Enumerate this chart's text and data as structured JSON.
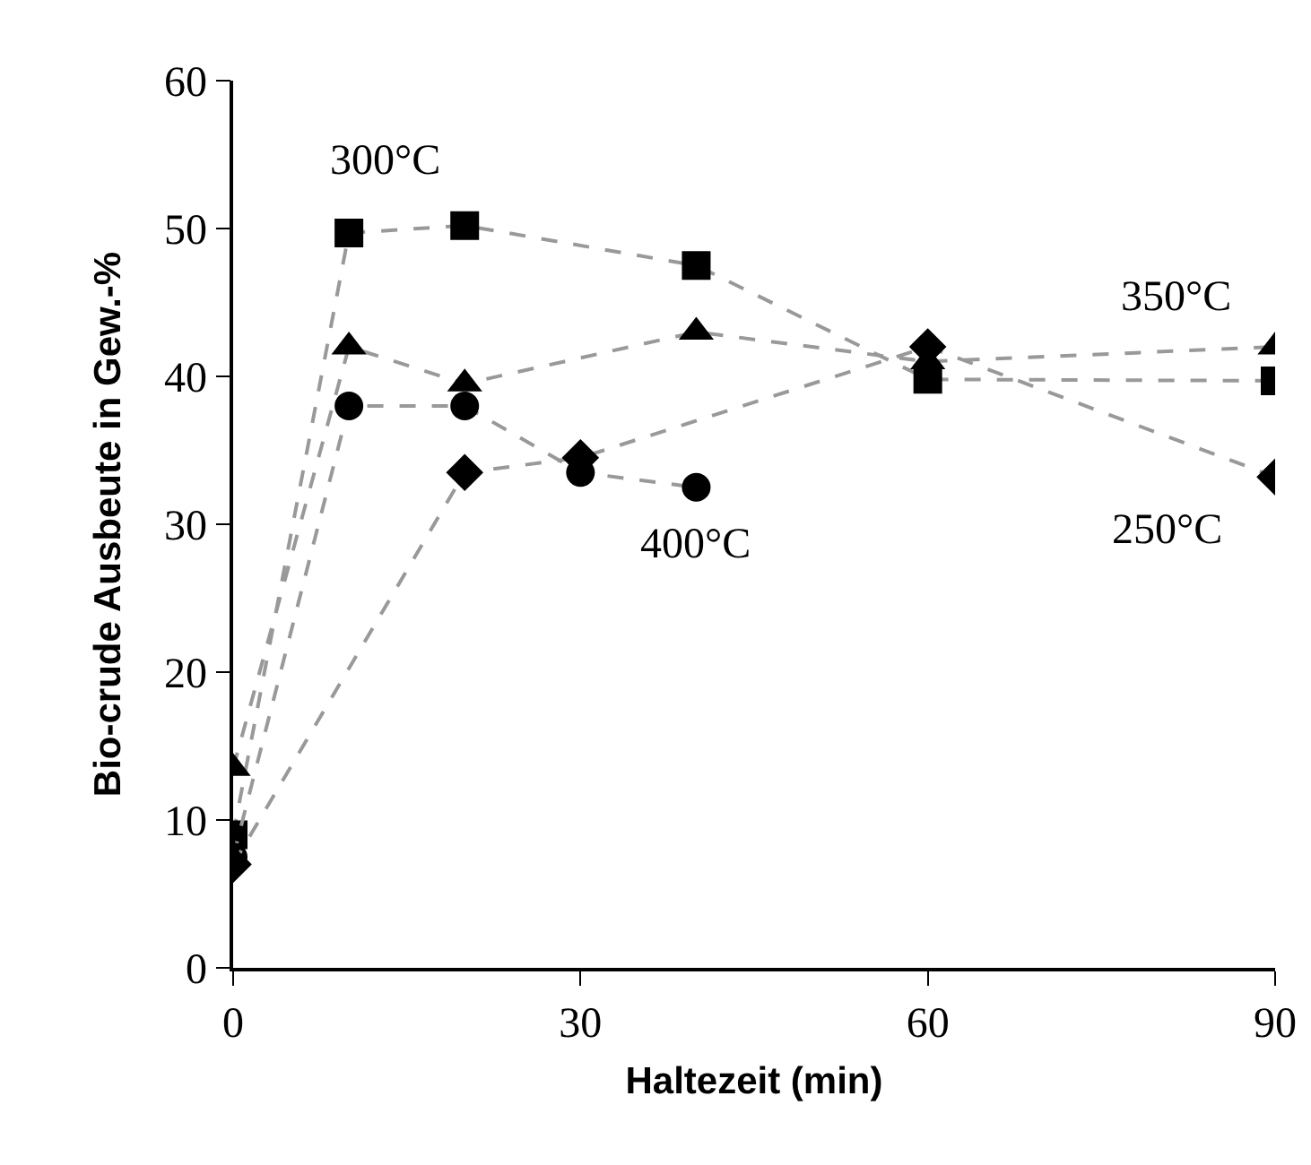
{
  "chart_data": {
    "type": "line",
    "xlabel": "Haltezeit (min)",
    "ylabel": "Bio-crude Ausbeute in Gew.-%",
    "xlim": [
      0,
      90
    ],
    "xticks": [
      0,
      30,
      60,
      90
    ],
    "ylim": [
      0,
      60
    ],
    "yticks": [
      0,
      10,
      20,
      30,
      40,
      50,
      60
    ],
    "grid": false,
    "legend": false,
    "line_style": "dashed",
    "series": [
      {
        "name": "300°C",
        "color": "#000000",
        "marker": "square",
        "x": [
          0,
          10,
          20,
          40,
          60,
          90
        ],
        "values": [
          9,
          49.7,
          50.2,
          47.5,
          39.8,
          39.7
        ]
      },
      {
        "name": "350°C",
        "color": "#000000",
        "marker": "triangle",
        "x": [
          0,
          10,
          20,
          40,
          60,
          90
        ],
        "values": [
          13.5,
          42,
          39.5,
          43,
          41,
          42
        ]
      },
      {
        "name": "400°C",
        "color": "#000000",
        "marker": "circle",
        "x": [
          0,
          10,
          20,
          30,
          40
        ],
        "values": [
          7.5,
          38,
          38,
          33.5,
          32.5
        ]
      },
      {
        "name": "250°C",
        "color": "#000000",
        "marker": "diamond",
        "x": [
          0,
          20,
          30,
          60,
          90
        ],
        "values": [
          7,
          33.5,
          34.5,
          42,
          33.2
        ]
      }
    ]
  }
}
